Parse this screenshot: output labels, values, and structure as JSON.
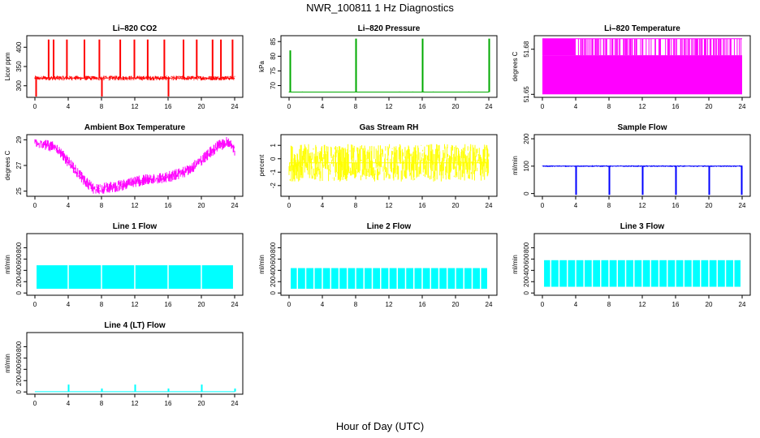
{
  "page": {
    "title": "NWR_100811  1 Hz Diagnostics",
    "xlabel": "Hour of Day (UTC)"
  },
  "chart_data": [
    {
      "type": "line",
      "title": "Li–820 CO2",
      "ylabel": "Licor ppm",
      "color": "#ff0000",
      "xlim": [
        0,
        24
      ],
      "ylim": [
        270,
        430
      ],
      "xticks": [
        0,
        4,
        8,
        12,
        16,
        20,
        24
      ],
      "yticks": [
        300,
        350,
        400
      ],
      "baseline": 320,
      "noise": 6,
      "spikes": [
        [
          0.1,
          250
        ],
        [
          1.6,
          420
        ],
        [
          2.2,
          420
        ],
        [
          3.8,
          420
        ],
        [
          5.9,
          420
        ],
        [
          7.7,
          420
        ],
        [
          8.0,
          250
        ],
        [
          10.2,
          420
        ],
        [
          11.9,
          420
        ],
        [
          13.5,
          420
        ],
        [
          15.5,
          420
        ],
        [
          16.0,
          250
        ],
        [
          17.8,
          420
        ],
        [
          19.4,
          420
        ],
        [
          21.3,
          420
        ],
        [
          22.3,
          420
        ],
        [
          23.7,
          420
        ]
      ]
    },
    {
      "type": "line",
      "title": "Li–820 Pressure",
      "ylabel": "kPa",
      "color": "#00aa00",
      "xlim": [
        0,
        24
      ],
      "ylim": [
        66,
        87
      ],
      "xticks": [
        0,
        4,
        8,
        12,
        16,
        20,
        24
      ],
      "yticks": [
        70,
        75,
        80,
        85
      ],
      "baseline": 67.8,
      "noise": 0.15,
      "spikes": [
        [
          0.1,
          82
        ],
        [
          8.0,
          86
        ],
        [
          16.0,
          86
        ],
        [
          24.0,
          86
        ]
      ]
    },
    {
      "type": "line",
      "title": "Li–820 Temperature",
      "ylabel": "degrees C",
      "color": "#ff00ff",
      "xlim": [
        0,
        24
      ],
      "ylim": [
        51.648,
        51.689
      ],
      "xticks": [
        0,
        4,
        8,
        12,
        16,
        20,
        24
      ],
      "yticks": [
        51.65,
        51.68
      ],
      "ytick_labels": [
        "51.65",
        "51.68"
      ],
      "levels": [
        51.65,
        51.676,
        51.687
      ],
      "style": "quantized"
    },
    {
      "type": "line",
      "title": "Ambient Box Temperature",
      "ylabel": "degrees C",
      "color": "#ff00ff",
      "xlim": [
        0,
        24
      ],
      "ylim": [
        24.6,
        29.4
      ],
      "xticks": [
        0,
        4,
        8,
        12,
        16,
        20,
        24
      ],
      "yticks": [
        25,
        27,
        29
      ],
      "x": [
        0,
        1,
        2,
        3,
        4,
        5,
        6,
        7,
        8,
        9,
        10,
        11,
        12,
        13,
        14,
        15,
        16,
        17,
        18,
        19,
        20,
        21,
        22,
        23,
        23.5,
        24
      ],
      "values": [
        28.8,
        28.7,
        28.5,
        28.0,
        27.3,
        26.5,
        25.8,
        25.2,
        25.2,
        25.3,
        25.4,
        25.5,
        25.7,
        25.9,
        26.0,
        26.0,
        26.1,
        26.3,
        26.5,
        26.9,
        27.4,
        28.0,
        28.5,
        28.8,
        28.6,
        28.2
      ],
      "band": 0.55
    },
    {
      "type": "line",
      "title": "Gas Stream RH",
      "ylabel": "percent",
      "color": "#ffff00",
      "xlim": [
        0,
        24
      ],
      "ylim": [
        -2.8,
        1.8
      ],
      "xticks": [
        0,
        4,
        8,
        12,
        16,
        20,
        24
      ],
      "yticks": [
        -2,
        -1,
        0,
        1
      ],
      "baseline": -0.3,
      "noise": 1.4
    },
    {
      "type": "line",
      "title": "Sample Flow",
      "ylabel": "ml/min",
      "color": "#0000ff",
      "xlim": [
        0,
        24
      ],
      "ylim": [
        -10,
        215
      ],
      "xticks": [
        0,
        4,
        8,
        12,
        16,
        20,
        24
      ],
      "yticks": [
        0,
        100,
        200
      ],
      "baseline": 100,
      "noise": 3,
      "spikes": [
        [
          4.0,
          -5
        ],
        [
          8.0,
          -5
        ],
        [
          12.0,
          -5
        ],
        [
          16.0,
          -5
        ],
        [
          20.0,
          -5
        ],
        [
          23.9,
          -5
        ]
      ]
    },
    {
      "type": "line",
      "title": "Line 1 Flow",
      "ylabel": "ml/min",
      "color": "#00ffff",
      "xlim": [
        0,
        24
      ],
      "ylim": [
        -40,
        1050
      ],
      "xticks": [
        0,
        4,
        8,
        12,
        16,
        20,
        24
      ],
      "yticks": [
        0,
        200,
        400,
        600,
        800
      ],
      "band_low": 75,
      "band_high": 490,
      "dips": [
        4,
        8,
        12,
        16,
        20,
        24
      ]
    },
    {
      "type": "line",
      "title": "Line 2 Flow",
      "ylabel": "ml/min",
      "color": "#00ffff",
      "xlim": [
        0,
        24
      ],
      "ylim": [
        -40,
        1050
      ],
      "xticks": [
        0,
        4,
        8,
        12,
        16,
        20,
        24
      ],
      "yticks": [
        0,
        200,
        400,
        600,
        800
      ],
      "band_low": 75,
      "band_high": 440,
      "dips": [
        1,
        2,
        3,
        4,
        5,
        6,
        7,
        8,
        9,
        10,
        11,
        12,
        13,
        14,
        15,
        16,
        17,
        18,
        19,
        20,
        21,
        22,
        23
      ]
    },
    {
      "type": "line",
      "title": "Line 3 Flow",
      "ylabel": "ml/min",
      "color": "#00ffff",
      "xlim": [
        0,
        24
      ],
      "ylim": [
        -40,
        1050
      ],
      "xticks": [
        0,
        4,
        8,
        12,
        16,
        20,
        24
      ],
      "yticks": [
        0,
        200,
        400,
        600,
        800
      ],
      "band_low": 110,
      "band_high": 580,
      "dips": [
        1,
        2,
        3,
        4,
        5,
        6,
        7,
        8,
        9,
        10,
        11,
        12,
        13,
        14,
        15,
        16,
        17,
        18,
        19,
        20,
        21,
        22,
        23
      ]
    },
    {
      "type": "line",
      "title": "Line 4 (LT) Flow",
      "ylabel": "ml/min",
      "color": "#00ffff",
      "xlim": [
        0,
        24
      ],
      "ylim": [
        -40,
        1050
      ],
      "xticks": [
        0,
        4,
        8,
        12,
        16,
        20,
        24
      ],
      "yticks": [
        0,
        200,
        400,
        600,
        800
      ],
      "baseline": 5,
      "noise": 4,
      "spikes": [
        [
          4.0,
          130
        ],
        [
          8.0,
          60
        ],
        [
          12.0,
          130
        ],
        [
          16.0,
          60
        ],
        [
          20.0,
          130
        ],
        [
          24.0,
          60
        ]
      ]
    }
  ]
}
